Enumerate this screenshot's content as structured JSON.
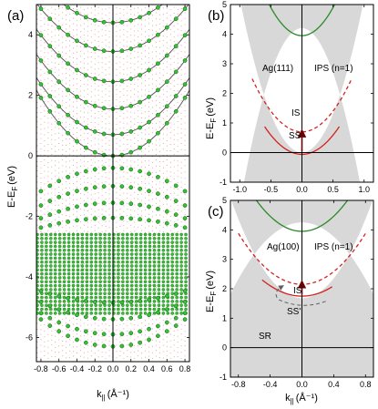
{
  "figure": {
    "panels": [
      "(a)",
      "(b)",
      "(c)"
    ]
  },
  "colors": {
    "grid_green": "#1a9a1a",
    "grid_green_fill": "#34c234",
    "dot_red": "#e04848",
    "curve_gray": "#505050",
    "curve_green": "#2a8a2a",
    "curve_red": "#d42020",
    "gap_gray": "#d8d8d8",
    "arrow_dark": "#6a0000"
  },
  "chart_data": [
    {
      "panel": "(a)",
      "type": "scatter",
      "xlabel": "k",
      "xlabel_sub": "||",
      "xlabel_unit": "(Å⁻¹)",
      "ylabel": "E-E",
      "ylabel_sub": "F",
      "ylabel_unit": "(eV)",
      "xlim": [
        -0.85,
        0.85
      ],
      "ylim": [
        -6.8,
        5.0
      ],
      "xticks": [
        -0.8,
        -0.6,
        -0.4,
        -0.2,
        0.0,
        0.2,
        0.4,
        0.6,
        0.8
      ],
      "xtick_labels": [
        "-0.8",
        "-0.6",
        "-0.4",
        "-0.2",
        "0.0",
        "0.2",
        "0.4",
        "0.6",
        "0.8"
      ],
      "yticks": [
        -6,
        -4,
        -2,
        0,
        2,
        4
      ],
      "ytick_labels": [
        "-6",
        "-4",
        "-2",
        "0",
        "2",
        "4"
      ],
      "reference_lines": {
        "x": 0,
        "y": 0
      },
      "band_curves": [
        {
          "E0": 0.0,
          "c": 3.0
        },
        {
          "E0": 0.7,
          "c": 2.6
        },
        {
          "E0": 1.55,
          "c": 2.5
        },
        {
          "E0": 2.45,
          "c": 2.4
        },
        {
          "E0": 3.45,
          "c": 2.2
        },
        {
          "E0": 4.4,
          "c": 2.0
        }
      ],
      "band_points": {
        "k": [
          -0.8,
          -0.7,
          -0.6,
          -0.5,
          -0.4,
          -0.3,
          -0.2,
          -0.1,
          0.0,
          0.1,
          0.2,
          0.3,
          0.4,
          0.5,
          0.6,
          0.7,
          0.8
        ],
        "bands_above_fermi_E0": [
          0.0,
          0.7,
          1.55,
          2.45,
          3.45,
          4.4
        ],
        "bands_below_fermi": [
          {
            "E0": -0.4,
            "c": -1.2
          },
          {
            "E0": -1.0,
            "c": -1.0
          },
          {
            "E0": -1.55,
            "c": -0.8
          },
          {
            "E0": -2.05,
            "c": -0.5
          },
          {
            "E0": -6.3,
            "c": 1.4
          },
          {
            "E0": -5.9,
            "c": 1.1
          },
          {
            "E0": -5.4,
            "c": 0.9
          },
          {
            "E0": -4.85,
            "c": 0.6
          }
        ],
        "d_band_range": [
          -5.2,
          -2.6
        ]
      }
    },
    {
      "panel": "(b)",
      "type": "line",
      "ylabel": "E-E",
      "ylabel_sub": "F",
      "ylabel_unit": "(eV)",
      "xlim": [
        -1.15,
        1.15
      ],
      "ylim": [
        -1.0,
        5.0
      ],
      "xticks": [
        -1.0,
        -0.5,
        0.0,
        0.5,
        1.0
      ],
      "xtick_labels": [
        "-1.0",
        "-0.5",
        "0.0",
        "0.5",
        "1.0"
      ],
      "yticks": [
        -1,
        0,
        1,
        2,
        3,
        4,
        5
      ],
      "ytick_labels": [
        "-1",
        "0",
        "1",
        "2",
        "3",
        "4",
        "5"
      ],
      "annotations": {
        "material": "Ag(111)",
        "ips": "IPS (n=1)",
        "is": "IS",
        "ss": "SS"
      },
      "series": [
        {
          "name": "IPS (n=1)",
          "style": "solid",
          "color": "green",
          "E0": 3.95,
          "c": 3.8,
          "k_range": [
            -0.6,
            0.6
          ]
        },
        {
          "name": "IS",
          "style": "dashed",
          "color": "red",
          "E0": 0.7,
          "c": 2.8,
          "k_range": [
            -0.8,
            0.8
          ]
        },
        {
          "name": "SS",
          "style": "solid",
          "color": "red",
          "E0": -0.06,
          "c": 2.6,
          "k_range": [
            -0.6,
            0.6
          ]
        }
      ],
      "gap_edges": {
        "upper": {
          "E0": 4.2,
          "c": 6.0
        },
        "lower": {
          "E0": 0.0,
          "c": 5.2
        }
      },
      "arrow": {
        "k": 0.0,
        "from": 0.05,
        "to": 0.75
      }
    },
    {
      "panel": "(c)",
      "type": "line",
      "xlabel": "k",
      "xlabel_sub": "||",
      "xlabel_unit": "(Å⁻¹)",
      "ylabel": "E-E",
      "ylabel_sub": "F",
      "ylabel_unit": "(eV)",
      "xlim": [
        -0.9,
        0.9
      ],
      "ylim": [
        -1.0,
        5.0
      ],
      "xticks": [
        -0.8,
        -0.4,
        0.0,
        0.4,
        0.8
      ],
      "xtick_labels": [
        "-0.8",
        "-0.4",
        "0.0",
        "0.4",
        "0.8"
      ],
      "yticks": [
        -1,
        0,
        1,
        2,
        3,
        4,
        5
      ],
      "ytick_labels": [
        "-1",
        "0",
        "1",
        "2",
        "3",
        "4",
        "5"
      ],
      "annotations": {
        "material": "Ag(100)",
        "ips": "IPS (n=1)",
        "is": "IS",
        "ss": "SS'",
        "sr": "SR"
      },
      "series": [
        {
          "name": "IPS (n=1)",
          "style": "solid",
          "color": "green",
          "E0": 3.95,
          "c": 3.2,
          "k_range": [
            -0.9,
            0.9
          ]
        },
        {
          "name": "IS",
          "style": "dashed",
          "color": "red",
          "E0": 2.15,
          "c": 2.7,
          "k_range": [
            -0.8,
            0.8
          ]
        },
        {
          "name": "SS'",
          "style": "solid",
          "color": "red",
          "E0": 1.75,
          "c": 2.2,
          "k_range": [
            -0.5,
            0.38
          ]
        }
      ],
      "gap_edges": {
        "upper": {
          "E0": 4.25,
          "c": 3.0
        },
        "lower": {
          "E0": 1.68,
          "c": 4.2
        }
      },
      "arrow": {
        "k": 0.0,
        "from": 1.8,
        "to": 2.25
      },
      "sr_arc": {
        "k_from": 0.3,
        "k_to": -0.3,
        "E": 1.7
      }
    }
  ]
}
